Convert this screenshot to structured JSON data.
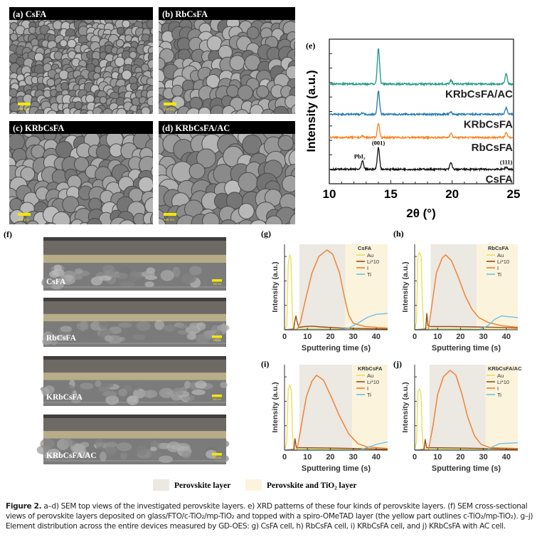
{
  "sem_top": [
    {
      "label": "(a) CsFA",
      "scale": "400 nm"
    },
    {
      "label": "(b) RbCsFA",
      "scale": "400 nm"
    },
    {
      "label": "(c) KRbCsFA",
      "scale": "400 nm"
    },
    {
      "label": "(d) KRbCsFA/AC",
      "scale": "400 nm"
    }
  ],
  "cross_section": {
    "panel_label": "(f)",
    "items": [
      {
        "label": "CsFA",
        "scale": "200 nm"
      },
      {
        "label": "RbCsFA",
        "scale": "200 nm"
      },
      {
        "label": "KRbCsFA",
        "scale": "200 nm"
      },
      {
        "label": "KRbCsFA/AC",
        "scale": "200 nm"
      }
    ]
  },
  "legend": {
    "perovskite": "Perovskite layer",
    "perovskite_tio2": "Perovskite and TiO₂ layer",
    "colors": {
      "perovskite": "#ece8e2",
      "perovskite_tio2": "#fbf3dc"
    }
  },
  "chart_data": [
    {
      "panel_label": "(e)",
      "type": "line",
      "xlabel": "2θ (°)",
      "ylabel": "Intensity (a.u.)",
      "xlim": [
        10,
        25
      ],
      "ylim": [
        0,
        10
      ],
      "xticks": [
        10,
        15,
        20,
        25
      ],
      "annotations": [
        {
          "text": "PbI₂",
          "x": 12.7
        },
        {
          "text": "(001)",
          "x": 14.0
        },
        {
          "text": "(111)",
          "x": 24.4
        }
      ],
      "series": [
        {
          "name": "CsFA",
          "color": "#111111",
          "baseline": 1.0,
          "peaks": [
            [
              12.7,
              0.55
            ],
            [
              14.0,
              1.5
            ],
            [
              19.9,
              0.45
            ],
            [
              24.4,
              0.15
            ]
          ]
        },
        {
          "name": "RbCsFA",
          "color": "#ff7f1e",
          "baseline": 3.2,
          "peaks": [
            [
              12.7,
              0.1
            ],
            [
              14.0,
              1.0
            ],
            [
              19.9,
              0.3
            ],
            [
              24.4,
              0.35
            ]
          ]
        },
        {
          "name": "KRbCsFA",
          "color": "#1f77b4",
          "baseline": 4.8,
          "peaks": [
            [
              12.7,
              0.1
            ],
            [
              14.0,
              1.6
            ],
            [
              19.9,
              0.15
            ],
            [
              24.4,
              0.45
            ]
          ]
        },
        {
          "name": "KRbCsFA/AC",
          "color": "#1a9985",
          "baseline": 6.9,
          "peaks": [
            [
              14.0,
              2.5
            ],
            [
              19.9,
              0.25
            ],
            [
              24.4,
              0.7
            ]
          ]
        }
      ]
    },
    {
      "panel_label": "(g)",
      "title": "CsFA",
      "type": "line",
      "xlabel": "Sputtering time (s)",
      "ylabel": "Intensity (a.u.)",
      "xlim": [
        0,
        45
      ],
      "ylim": [
        0,
        1.05
      ],
      "xticks": [
        0,
        10,
        20,
        30,
        40
      ],
      "regions": {
        "perovskite": [
          6.5,
          26.5
        ],
        "perovskite_tio2": [
          26.5,
          45
        ]
      },
      "series": [
        {
          "name": "Au",
          "color": "#e8e05a",
          "points": [
            [
              0,
              0
            ],
            [
              1,
              0.05
            ],
            [
              1.6,
              0.8
            ],
            [
              2.2,
              0.92
            ],
            [
              2.8,
              0.88
            ],
            [
              3.3,
              0.3
            ],
            [
              3.8,
              0.02
            ],
            [
              45,
              0
            ]
          ]
        },
        {
          "name": "Li*10",
          "color": "#9a4a1e",
          "points": [
            [
              0,
              0
            ],
            [
              4,
              0.01
            ],
            [
              4.6,
              0.12
            ],
            [
              5.0,
              0.17
            ],
            [
              5.5,
              0.1
            ],
            [
              6.2,
              0.03
            ],
            [
              9,
              0.04
            ],
            [
              12,
              0.045
            ],
            [
              16,
              0.035
            ],
            [
              25,
              0.02
            ],
            [
              35,
              0.015
            ],
            [
              45,
              0.01
            ]
          ]
        },
        {
          "name": "I",
          "color": "#f07d28",
          "points": [
            [
              0,
              0
            ],
            [
              5.5,
              0
            ],
            [
              7,
              0.1
            ],
            [
              9,
              0.35
            ],
            [
              12,
              0.7
            ],
            [
              15,
              0.9
            ],
            [
              18.5,
              0.98
            ],
            [
              21,
              0.93
            ],
            [
              24,
              0.7
            ],
            [
              26,
              0.42
            ],
            [
              28,
              0.18
            ],
            [
              30,
              0.08
            ],
            [
              35,
              0.04
            ],
            [
              45,
              0.02
            ]
          ]
        },
        {
          "name": "Ti",
          "color": "#6ec1e8",
          "points": [
            [
              0,
              0
            ],
            [
              24,
              0
            ],
            [
              28,
              0.02
            ],
            [
              32,
              0.08
            ],
            [
              36,
              0.15
            ],
            [
              40,
              0.19
            ],
            [
              45,
              0.2
            ]
          ]
        }
      ]
    },
    {
      "panel_label": "(h)",
      "title": "RbCsFA",
      "type": "line",
      "xlabel": "Sputtering time (s)",
      "ylabel": "Intensity (a.u.)",
      "xlim": [
        0,
        45
      ],
      "ylim": [
        0,
        1.05
      ],
      "xticks": [
        0,
        10,
        20,
        30,
        40
      ],
      "regions": {
        "perovskite": [
          7,
          27
        ],
        "perovskite_tio2": [
          27,
          45
        ]
      },
      "series": [
        {
          "name": "Au",
          "color": "#e8e05a",
          "points": [
            [
              0,
              0
            ],
            [
              0.8,
              0.1
            ],
            [
              1.4,
              0.9
            ],
            [
              2,
              0.95
            ],
            [
              2.8,
              0.9
            ],
            [
              3.4,
              0.3
            ],
            [
              4,
              0.02
            ],
            [
              45,
              0
            ]
          ]
        },
        {
          "name": "Li*10",
          "color": "#9a4a1e",
          "points": [
            [
              0,
              0
            ],
            [
              4.8,
              0.01
            ],
            [
              5.3,
              0.2
            ],
            [
              5.8,
              0.05
            ],
            [
              7,
              0.04
            ],
            [
              15,
              0.04
            ],
            [
              25,
              0.035
            ],
            [
              35,
              0.03
            ],
            [
              45,
              0.02
            ]
          ]
        },
        {
          "name": "I",
          "color": "#f07d28",
          "points": [
            [
              0,
              0
            ],
            [
              6,
              0
            ],
            [
              7.5,
              0.3
            ],
            [
              9.5,
              0.7
            ],
            [
              12,
              0.88
            ],
            [
              13.5,
              0.92
            ],
            [
              16,
              0.85
            ],
            [
              19,
              0.65
            ],
            [
              22,
              0.42
            ],
            [
              25,
              0.25
            ],
            [
              28,
              0.15
            ],
            [
              32,
              0.09
            ],
            [
              38,
              0.05
            ],
            [
              45,
              0.03
            ]
          ]
        },
        {
          "name": "Ti",
          "color": "#6ec1e8",
          "points": [
            [
              0,
              0
            ],
            [
              28,
              0
            ],
            [
              32,
              0.05
            ],
            [
              35,
              0.13
            ],
            [
              38,
              0.17
            ],
            [
              41,
              0.16
            ],
            [
              45,
              0.15
            ]
          ]
        }
      ]
    },
    {
      "panel_label": "(i)",
      "title": "KRbCsFA",
      "type": "line",
      "xlabel": "Sputtering time (s)",
      "ylabel": "Intensity (a.u.)",
      "xlim": [
        0,
        45
      ],
      "ylim": [
        0,
        1.05
      ],
      "xticks": [
        0,
        10,
        20,
        30,
        40
      ],
      "regions": {
        "perovskite": [
          6.5,
          29.5
        ],
        "perovskite_tio2": [
          29.5,
          45
        ]
      },
      "series": [
        {
          "name": "Au",
          "color": "#e8e05a",
          "points": [
            [
              0,
              0
            ],
            [
              1,
              0.1
            ],
            [
              1.6,
              0.75
            ],
            [
              2.4,
              0.8
            ],
            [
              3,
              0.72
            ],
            [
              3.5,
              0.2
            ],
            [
              4,
              0.02
            ],
            [
              45,
              0
            ]
          ]
        },
        {
          "name": "Li*10",
          "color": "#9a4a1e",
          "points": [
            [
              0,
              0
            ],
            [
              4.1,
              0.01
            ],
            [
              4.6,
              0.14
            ],
            [
              5.2,
              0.03
            ],
            [
              7,
              0.03
            ],
            [
              20,
              0.025
            ],
            [
              30,
              0.02
            ],
            [
              45,
              0.01
            ]
          ]
        },
        {
          "name": "I",
          "color": "#f07d28",
          "points": [
            [
              0,
              0
            ],
            [
              5.5,
              0
            ],
            [
              7,
              0.25
            ],
            [
              9.5,
              0.65
            ],
            [
              12,
              0.85
            ],
            [
              14,
              0.92
            ],
            [
              17,
              0.86
            ],
            [
              20,
              0.68
            ],
            [
              24,
              0.42
            ],
            [
              28,
              0.2
            ],
            [
              32,
              0.08
            ],
            [
              36,
              0.04
            ],
            [
              45,
              0.02
            ]
          ]
        },
        {
          "name": "Ti",
          "color": "#6ec1e8",
          "points": [
            [
              0,
              0
            ],
            [
              32,
              0
            ],
            [
              36,
              0.03
            ],
            [
              40,
              0.07
            ],
            [
              45,
              0.1
            ]
          ]
        }
      ]
    },
    {
      "panel_label": "(j)",
      "title": "KRbCsFA/AC",
      "type": "line",
      "xlabel": "Sputtering time (s)",
      "ylabel": "Intensity (a.u.)",
      "xlim": [
        0,
        45
      ],
      "ylim": [
        0,
        1.05
      ],
      "xticks": [
        0,
        10,
        20,
        30,
        40
      ],
      "regions": {
        "perovskite": [
          6.5,
          31
        ],
        "perovskite_tio2": [
          31,
          45
        ]
      },
      "series": [
        {
          "name": "Au",
          "color": "#e8e05a",
          "points": [
            [
              0,
              0
            ],
            [
              0.8,
              0.1
            ],
            [
              1.4,
              0.72
            ],
            [
              2.2,
              0.75
            ],
            [
              2.8,
              0.68
            ],
            [
              3.3,
              0.2
            ],
            [
              3.8,
              0.02
            ],
            [
              45,
              0
            ]
          ]
        },
        {
          "name": "Li*10",
          "color": "#9a4a1e",
          "points": [
            [
              0,
              0
            ],
            [
              4.1,
              0.01
            ],
            [
              4.6,
              0.13
            ],
            [
              5.2,
              0.03
            ],
            [
              7,
              0.03
            ],
            [
              20,
              0.025
            ],
            [
              30,
              0.02
            ],
            [
              45,
              0.01
            ]
          ]
        },
        {
          "name": "I",
          "color": "#f07d28",
          "points": [
            [
              0,
              0
            ],
            [
              6,
              0
            ],
            [
              8,
              0.3
            ],
            [
              10,
              0.68
            ],
            [
              12.5,
              0.9
            ],
            [
              15.5,
              0.98
            ],
            [
              18,
              0.92
            ],
            [
              20.5,
              0.7
            ],
            [
              23,
              0.42
            ],
            [
              26,
              0.18
            ],
            [
              29,
              0.07
            ],
            [
              33,
              0.03
            ],
            [
              45,
              0.02
            ]
          ]
        },
        {
          "name": "Ti",
          "color": "#6ec1e8",
          "points": [
            [
              0,
              0
            ],
            [
              31,
              0
            ],
            [
              34,
              0.04
            ],
            [
              37,
              0.08
            ],
            [
              45,
              0.09
            ]
          ]
        }
      ]
    }
  ],
  "caption": {
    "label": "Figure 2.",
    "text": " a–d) SEM top views of the investigated perovskite layers. e) XRD patterns of these four kinds of perovskite layers. (f) SEM cross-sectional views of perovskite layers deposited on glass/FTO/c-TiO₂/mp-TiO₂ and topped with a spiro-OMeTAD layer (the yellow part outlines c-TiO₂/mp-TiO₂). g–j) Element distribution across the entire devices measured by GD-OES: g) CsFA cell, h) RbCsFA cell, i) KRbCsFA cell, and j) KRbCsFA with AC cell."
  }
}
